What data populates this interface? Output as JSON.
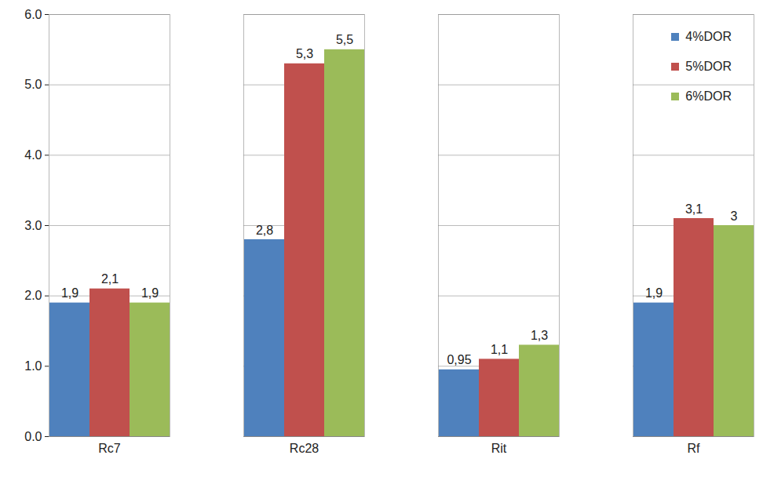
{
  "chart_data": {
    "type": "bar",
    "categories": [
      "Rc7",
      "Rc28",
      "Rit",
      "Rf"
    ],
    "series": [
      {
        "name": "4%DOR",
        "color": "#4f81bd",
        "values": [
          1.9,
          2.8,
          0.95,
          1.9
        ],
        "value_labels": [
          "1,9",
          "2,8",
          "0,95",
          "1,9"
        ]
      },
      {
        "name": "5%DOR",
        "color": "#c0504d",
        "values": [
          2.1,
          5.3,
          1.1,
          3.1
        ],
        "value_labels": [
          "2,1",
          "5,3",
          "1,1",
          "3,1"
        ]
      },
      {
        "name": "6%DOR",
        "color": "#9bbb59",
        "values": [
          1.9,
          5.5,
          1.3,
          3
        ],
        "value_labels": [
          "1,9",
          "5,5",
          "1,3",
          "3"
        ]
      }
    ],
    "ylim": [
      0,
      6
    ],
    "yticks": [
      0,
      1,
      2,
      3,
      4,
      5,
      6
    ],
    "grid": true,
    "legend": "top-right",
    "data_labels": true
  }
}
